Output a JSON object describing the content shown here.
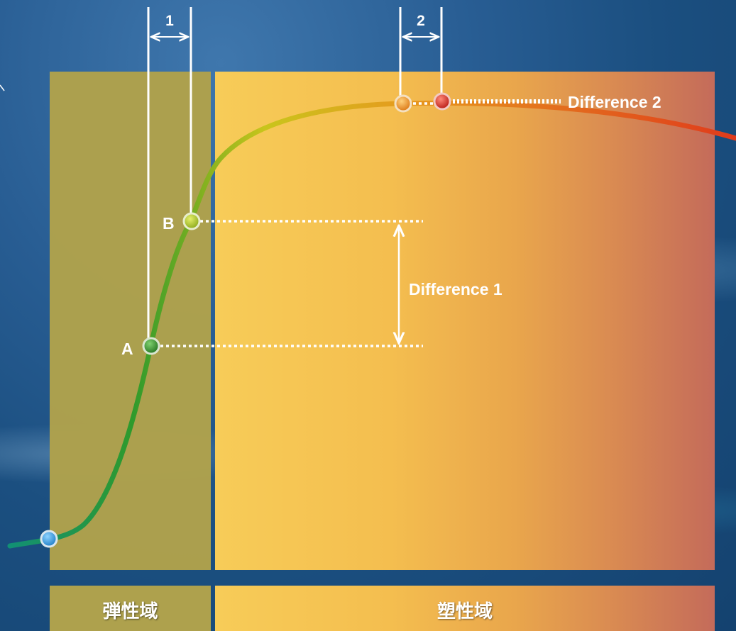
{
  "zones": {
    "elastic": "弾性域",
    "plastic": "塑性域"
  },
  "intervals": {
    "interval_1": "1",
    "interval_2": "2"
  },
  "points": {
    "a": "A",
    "b": "B"
  },
  "differences": {
    "difference_1": "Difference 1",
    "difference_2": "Difference 2"
  },
  "colors": {
    "elastic_zone": "#aea14d",
    "plastic_zone_start": "#f7cc58",
    "plastic_zone_end": "#c46b5a",
    "curve_start": "#0f8f7a",
    "curve_mid": "#2f9a2c",
    "curve_end": "#e03b1c",
    "point_start": "#2a9be0",
    "point_a": "#2e8c2a",
    "point_b": "#a9c41e",
    "point_orange": "#f08f1c",
    "point_red": "#d8201c"
  }
}
